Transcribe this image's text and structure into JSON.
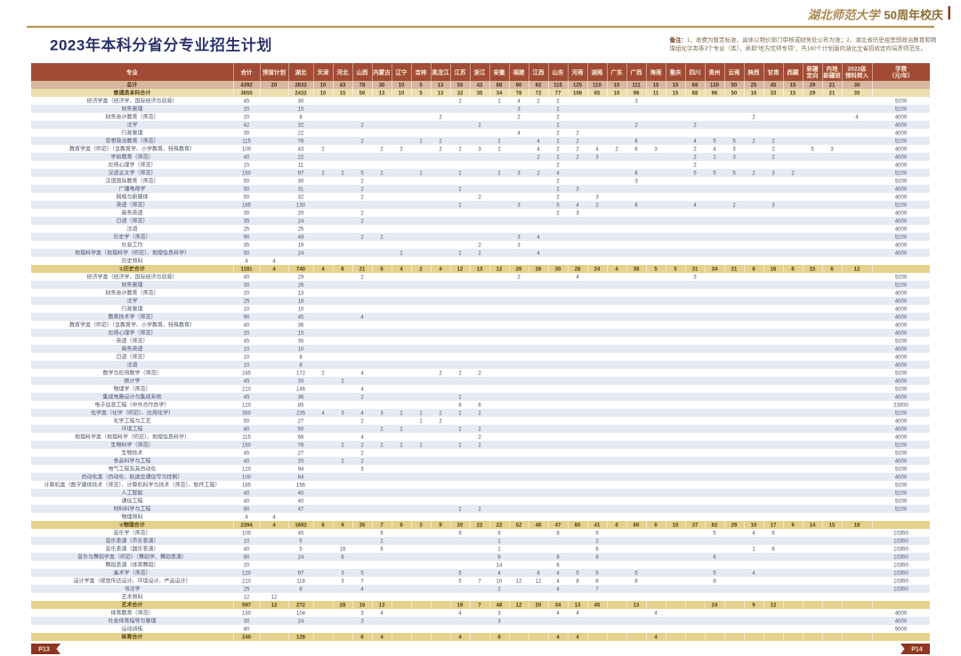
{
  "brand": {
    "school_script": "湖北师范大学",
    "anniversary": "50周年校庆"
  },
  "header": {
    "title": "2023年本科分省分专业招生计划"
  },
  "notes": {
    "label": "备注：",
    "text": "1、收费为暂定标准，具体以物价部门审核或财务处公布为准；2、湖北省历史组思想政治教育和物理组化学类等3个专业（类），承担“地方优师专项”，共140个计划面向湖北全省招收定向培养师范生。"
  },
  "footer": {
    "left_page": "P13",
    "right_page": "P14"
  },
  "colors": {
    "header_bg": "#a34c35",
    "grand_row": "#d9b6a1",
    "section_row": "#ecdfb0",
    "subtotal_row": "#e6d18c",
    "zebra": "#e7eaf6",
    "accent_gold": "#b49a5e",
    "tag_red": "#8d3722"
  },
  "table": {
    "columns": [
      "专业",
      "合计",
      "预留计划",
      "湖北",
      "天津",
      "河北",
      "山西",
      "内蒙古",
      "辽宁",
      "吉林",
      "黑龙江",
      "江苏",
      "浙江",
      "安徽",
      "福建",
      "江西",
      "山东",
      "河南",
      "湖南",
      "广东",
      "广西",
      "海南",
      "重庆",
      "四川",
      "贵州",
      "云南",
      "陕西",
      "甘肃",
      "西藏",
      "新疆\n定向",
      "内地\n新疆班",
      "2022级\n预科转入",
      "学费\n（元/年）"
    ],
    "rows": [
      {
        "name": "总计",
        "style": "grand",
        "v": {
          "0": "4392",
          "1": "20",
          "2": "2832",
          "3": "10",
          "4": "43",
          "5": "78",
          "6": "30",
          "7": "10",
          "8": "5",
          "9": "13",
          "10": "55",
          "11": "42",
          "12": "88",
          "13": "90",
          "14": "92",
          "15": "115",
          "16": "125",
          "17": "110",
          "18": "10",
          "19": "111",
          "20": "15",
          "21": "15",
          "22": "68",
          "23": "120",
          "24": "50",
          "25": "25",
          "26": "45",
          "27": "15",
          "28": "29",
          "29": "21",
          "30": "30"
        }
      },
      {
        "name": "普通类本科合计",
        "style": "section",
        "v": {
          "0": "3655",
          "2": "2432",
          "3": "10",
          "4": "15",
          "5": "56",
          "6": "13",
          "7": "10",
          "8": "5",
          "9": "13",
          "10": "32",
          "11": "35",
          "12": "34",
          "13": "78",
          "14": "72",
          "15": "77",
          "16": "108",
          "17": "65",
          "18": "10",
          "19": "98",
          "20": "11",
          "21": "15",
          "22": "68",
          "23": "96",
          "24": "50",
          "25": "16",
          "26": "33",
          "27": "15",
          "28": "29",
          "29": "21",
          "30": "30"
        }
      },
      {
        "name": "经济学类（经济学、国际经济与贸易）",
        "style": "",
        "v": {
          "0": "45",
          "2": "30",
          "10": "2",
          "12": "2",
          "13": "4",
          "14": "2",
          "15": "2",
          "19": "3",
          "31": "5200"
        }
      },
      {
        "name": "财务管理",
        "style": "",
        "v": {
          "0": "20",
          "2": "15",
          "13": "3",
          "15": "2",
          "31": "5200"
        }
      },
      {
        "name": "财务会计教育（师范）",
        "style": "",
        "v": {
          "0": "20",
          "2": "8",
          "9": "2",
          "13": "2",
          "15": "2",
          "25": "2",
          "30": "4",
          "31": "4000"
        }
      },
      {
        "name": "法学",
        "style": "",
        "v": {
          "0": "42",
          "2": "32",
          "5": "2",
          "11": "2",
          "15": "2",
          "19": "2",
          "22": "2",
          "31": "4000"
        }
      },
      {
        "name": "行政管理",
        "style": "",
        "v": {
          "0": "30",
          "2": "22",
          "13": "4",
          "15": "2",
          "16": "2",
          "31": "4000"
        }
      },
      {
        "name": "思想政治教育（师范）",
        "style": "",
        "v": {
          "0": "115",
          "2": "76",
          "5": "2",
          "8": "1",
          "9": "2",
          "12": "2",
          "14": "4",
          "15": "2",
          "16": "2",
          "19": "6",
          "22": "4",
          "23": "5",
          "24": "5",
          "25": "2",
          "26": "2",
          "31": "5200"
        }
      },
      {
        "name": "教育学类（师范）（含教育学、小学教育、特殊教育）",
        "style": "",
        "v": {
          "0": "100",
          "2": "43",
          "3": "2",
          "6": "2",
          "7": "2",
          "9": "2",
          "10": "2",
          "11": "3",
          "12": "2",
          "14": "4",
          "15": "2",
          "16": "2",
          "17": "4",
          "18": "2",
          "19": "6",
          "20": "3",
          "22": "2",
          "23": "4",
          "24": "3",
          "26": "2",
          "28": "5",
          "29": "3",
          "31": "4000"
        }
      },
      {
        "name": "学前教育（师范）",
        "style": "",
        "v": {
          "0": "40",
          "2": "22",
          "14": "2",
          "15": "2",
          "16": "2",
          "17": "3",
          "22": "2",
          "23": "2",
          "24": "3",
          "26": "2",
          "31": "4000"
        }
      },
      {
        "name": "应用心理学（师范）",
        "style": "",
        "v": {
          "0": "15",
          "2": "11",
          "15": "2",
          "22": "2",
          "31": "4000"
        }
      },
      {
        "name": "汉语言文学（师范）",
        "style": "",
        "v": {
          "0": "150",
          "2": "97",
          "3": "2",
          "4": "2",
          "5": "5",
          "6": "2",
          "8": "1",
          "10": "2",
          "12": "2",
          "13": "3",
          "14": "2",
          "15": "4",
          "19": "6",
          "22": "5",
          "23": "5",
          "24": "5",
          "25": "2",
          "26": "3",
          "27": "2",
          "31": "5200"
        }
      },
      {
        "name": "汉语国际教育（师范）",
        "style": "",
        "v": {
          "0": "50",
          "2": "30",
          "5": "2",
          "15": "2",
          "19": "3",
          "31": "5200"
        }
      },
      {
        "name": "广播电视学",
        "style": "",
        "v": {
          "0": "50",
          "2": "31",
          "5": "2",
          "10": "2",
          "15": "2",
          "16": "3",
          "31": "4000"
        }
      },
      {
        "name": "网络与新媒体",
        "style": "",
        "v": {
          "0": "50",
          "2": "32",
          "5": "2",
          "11": "2",
          "15": "2",
          "17": "3",
          "31": "4000"
        }
      },
      {
        "name": "英语（师范）",
        "style": "",
        "v": {
          "0": "185",
          "2": "130",
          "10": "2",
          "13": "3",
          "15": "5",
          "16": "4",
          "17": "2",
          "19": "6",
          "22": "4",
          "24": "2",
          "26": "3",
          "31": "5200"
        }
      },
      {
        "name": "商务英语",
        "style": "",
        "v": {
          "0": "30",
          "2": "20",
          "5": "2",
          "15": "2",
          "16": "3",
          "31": "4000"
        }
      },
      {
        "name": "日语（师范）",
        "style": "",
        "v": {
          "0": "35",
          "2": "24",
          "5": "2",
          "31": "4000"
        }
      },
      {
        "name": "法语",
        "style": "",
        "v": {
          "0": "25",
          "2": "25",
          "31": "4000"
        }
      },
      {
        "name": "历史学（师范）",
        "style": "",
        "v": {
          "0": "90",
          "2": "49",
          "5": "2",
          "6": "2",
          "13": "3",
          "14": "4",
          "31": "5200"
        }
      },
      {
        "name": "社会工作",
        "style": "",
        "v": {
          "0": "35",
          "2": "19",
          "11": "2",
          "13": "3",
          "31": "4000"
        }
      },
      {
        "name": "地理科学类（地理科学（师范）、地理信息科学）",
        "style": "",
        "v": {
          "0": "50",
          "2": "24",
          "7": "2",
          "10": "2",
          "11": "2",
          "14": "4",
          "31": "4000"
        }
      },
      {
        "name": "历史预科",
        "style": "",
        "v": {
          "0": "4",
          "1": "4"
        }
      },
      {
        "name": "①历史合计",
        "style": "subtotal",
        "v": {
          "0": "1181",
          "1": "4",
          "2": "740",
          "3": "4",
          "4": "6",
          "5": "21",
          "6": "6",
          "7": "4",
          "8": "2",
          "9": "4",
          "10": "12",
          "11": "13",
          "12": "12",
          "13": "26",
          "14": "26",
          "15": "30",
          "16": "28",
          "17": "24",
          "18": "4",
          "19": "38",
          "20": "5",
          "21": "5",
          "22": "31",
          "23": "34",
          "24": "21",
          "25": "6",
          "26": "16",
          "27": "6",
          "28": "15",
          "29": "6",
          "30": "12"
        }
      },
      {
        "name": "经济学类（经济学、国际经济与贸易）",
        "style": "",
        "v": {
          "0": "40",
          "2": "29",
          "5": "2",
          "13": "2",
          "16": "4",
          "22": "3",
          "31": "5200"
        }
      },
      {
        "name": "财务管理",
        "style": "",
        "v": {
          "0": "30",
          "2": "26",
          "31": "5200"
        }
      },
      {
        "name": "财务会计教育（师范）",
        "style": "",
        "v": {
          "0": "20",
          "2": "13",
          "31": "4000"
        }
      },
      {
        "name": "法学",
        "style": "",
        "v": {
          "0": "25",
          "2": "18",
          "31": "4000"
        }
      },
      {
        "name": "行政管理",
        "style": "",
        "v": {
          "0": "10",
          "2": "10",
          "31": "4000"
        }
      },
      {
        "name": "教育技术学（师范）",
        "style": "",
        "v": {
          "0": "90",
          "2": "45",
          "5": "4",
          "31": "4000"
        }
      },
      {
        "name": "教育学类（师范）（含教育学、小学教育、特殊教育）",
        "style": "",
        "v": {
          "0": "40",
          "2": "36",
          "31": "4000"
        }
      },
      {
        "name": "应用心理学（师范）",
        "style": "",
        "v": {
          "0": "20",
          "2": "15",
          "31": "4000"
        }
      },
      {
        "name": "英语（师范）",
        "style": "",
        "v": {
          "0": "45",
          "2": "35",
          "31": "5200"
        }
      },
      {
        "name": "商务英语",
        "style": "",
        "v": {
          "0": "10",
          "2": "10",
          "31": "4000"
        }
      },
      {
        "name": "日语（师范）",
        "style": "",
        "v": {
          "0": "10",
          "2": "8",
          "31": "4000"
        }
      },
      {
        "name": "法语",
        "style": "",
        "v": {
          "0": "10",
          "2": "8",
          "31": "4000"
        }
      },
      {
        "name": "数学与应用数学（师范）",
        "style": "",
        "v": {
          "0": "245",
          "2": "172",
          "3": "2",
          "5": "4",
          "9": "2",
          "10": "2",
          "11": "2",
          "31": "5200"
        }
      },
      {
        "name": "统计学",
        "style": "",
        "v": {
          "0": "45",
          "2": "33",
          "4": "2",
          "31": "4000"
        }
      },
      {
        "name": "物理学（师范）",
        "style": "",
        "v": {
          "0": "210",
          "2": "146",
          "5": "4",
          "31": "5200"
        }
      },
      {
        "name": "集成电路设计与集成系统",
        "style": "",
        "v": {
          "0": "45",
          "2": "36",
          "5": "2",
          "10": "2",
          "31": "4000"
        }
      },
      {
        "name": "电子信息工程（中外合作办学）",
        "style": "",
        "v": {
          "0": "120",
          "2": "85",
          "10": "8",
          "11": "6",
          "31": "23000"
        }
      },
      {
        "name": "化学类（化学（师范）、应用化学）",
        "style": "",
        "v": {
          "0": "350",
          "2": "235",
          "3": "4",
          "4": "3",
          "5": "4",
          "6": "3",
          "7": "2",
          "8": "1",
          "9": "2",
          "10": "2",
          "11": "2",
          "31": "5200"
        }
      },
      {
        "name": "化学工程与工艺",
        "style": "",
        "v": {
          "0": "50",
          "2": "27",
          "5": "2",
          "8": "1",
          "9": "2",
          "31": "4000"
        }
      },
      {
        "name": "环境工程",
        "style": "",
        "v": {
          "0": "80",
          "2": "50",
          "6": "2",
          "7": "2",
          "10": "2",
          "11": "2",
          "31": "4000"
        }
      },
      {
        "name": "地理科学类（地理科学（师范）、地理信息科学）",
        "style": "",
        "v": {
          "0": "115",
          "2": "66",
          "5": "4",
          "11": "2",
          "31": "4000"
        }
      },
      {
        "name": "生物科学（师范）",
        "style": "",
        "v": {
          "0": "150",
          "2": "78",
          "4": "2",
          "5": "2",
          "6": "2",
          "7": "2",
          "8": "1",
          "10": "2",
          "11": "2",
          "31": "5200"
        }
      },
      {
        "name": "生物技术",
        "style": "",
        "v": {
          "0": "45",
          "2": "27",
          "5": "2",
          "31": "5200"
        }
      },
      {
        "name": "食品科学与工程",
        "style": "",
        "v": {
          "0": "40",
          "2": "20",
          "4": "2",
          "5": "2",
          "31": "4000"
        }
      },
      {
        "name": "电气工程及其自动化",
        "style": "",
        "v": {
          "0": "120",
          "2": "94",
          "5": "3",
          "31": "5200"
        }
      },
      {
        "name": "自动化类（自动化、轨道交通信号与控制）",
        "style": "",
        "v": {
          "0": "100",
          "2": "64",
          "31": "4000"
        }
      },
      {
        "name": "计算机类（数字媒体技术（师范）、计算机科学与技术（师范）、软件工程）",
        "style": "",
        "v": {
          "0": "185",
          "2": "156",
          "31": "5200"
        }
      },
      {
        "name": "人工智能",
        "style": "",
        "v": {
          "0": "40",
          "2": "40",
          "31": "5200"
        }
      },
      {
        "name": "通信工程",
        "style": "",
        "v": {
          "0": "40",
          "2": "40",
          "31": "5200"
        }
      },
      {
        "name": "材料科学与工程",
        "style": "",
        "v": {
          "0": "60",
          "2": "47",
          "10": "2",
          "11": "2",
          "31": "5200"
        }
      },
      {
        "name": "物理预科",
        "style": "",
        "v": {
          "0": "4",
          "1": "4"
        }
      },
      {
        "name": "②物理合计",
        "style": "subtotal",
        "v": {
          "0": "2394",
          "1": "4",
          "2": "1692",
          "3": "6",
          "4": "9",
          "5": "35",
          "6": "7",
          "7": "6",
          "8": "3",
          "9": "9",
          "10": "20",
          "11": "22",
          "12": "22",
          "13": "52",
          "14": "46",
          "15": "47",
          "16": "80",
          "17": "41",
          "18": "6",
          "19": "60",
          "20": "6",
          "21": "10",
          "22": "37",
          "23": "62",
          "24": "29",
          "25": "10",
          "26": "17",
          "27": "9",
          "28": "14",
          "29": "15",
          "30": "18"
        }
      },
      {
        "name": "音乐学（师范）",
        "style": "",
        "v": {
          "0": "100",
          "2": "45",
          "6": "6",
          "10": "9",
          "12": "8",
          "15": "8",
          "17": "9",
          "23": "5",
          "25": "4",
          "26": "6",
          "31": "10350"
        }
      },
      {
        "name": "音乐表演（声乐表演）",
        "style": "",
        "v": {
          "0": "10",
          "2": "5",
          "6": "2",
          "12": "1",
          "17": "2",
          "31": "10350"
        }
      },
      {
        "name": "音乐表演（器乐表演）",
        "style": "",
        "v": {
          "0": "40",
          "2": "5",
          "4": "16",
          "6": "5",
          "12": "1",
          "17": "6",
          "25": "1",
          "26": "6",
          "31": "10350"
        }
      },
      {
        "name": "音乐与舞蹈学类（师范）（舞蹈学、舞蹈表演）",
        "style": "",
        "v": {
          "0": "60",
          "2": "24",
          "4": "6",
          "12": "8",
          "15": "8",
          "17": "8",
          "23": "6",
          "31": "10350"
        }
      },
      {
        "name": "舞蹈表演（体育舞蹈）",
        "style": "",
        "v": {
          "0": "20",
          "12": "14",
          "15": "6",
          "31": "10350"
        }
      },
      {
        "name": "美术学（师范）",
        "style": "",
        "v": {
          "0": "120",
          "2": "67",
          "4": "3",
          "5": "5",
          "10": "5",
          "12": "4",
          "14": "8",
          "15": "4",
          "16": "5",
          "17": "5",
          "19": "5",
          "23": "5",
          "25": "4",
          "31": "10350"
        }
      },
      {
        "name": "设计学类（视觉传达设计、环境设计、产品设计）",
        "style": "",
        "v": {
          "0": "210",
          "2": "118",
          "4": "3",
          "5": "7",
          "10": "5",
          "11": "7",
          "12": "10",
          "13": "12",
          "14": "12",
          "15": "4",
          "16": "8",
          "17": "8",
          "19": "8",
          "23": "8",
          "31": "10350"
        }
      },
      {
        "name": "书法学",
        "style": "",
        "v": {
          "0": "25",
          "2": "8",
          "5": "4",
          "12": "2",
          "15": "4",
          "17": "7",
          "31": "10350"
        }
      },
      {
        "name": "艺术预科",
        "style": "",
        "v": {
          "0": "12",
          "1": "12"
        }
      },
      {
        "name": "艺术合计",
        "style": "subtotal",
        "v": {
          "0": "597",
          "1": "12",
          "2": "272",
          "4": "28",
          "5": "16",
          "6": "13",
          "10": "19",
          "11": "7",
          "12": "48",
          "13": "12",
          "14": "20",
          "15": "34",
          "16": "13",
          "17": "45",
          "19": "13",
          "23": "24",
          "25": "9",
          "26": "12"
        }
      },
      {
        "name": "体育教育（师范）",
        "style": "",
        "v": {
          "0": "130",
          "2": "104",
          "5": "3",
          "6": "4",
          "10": "4",
          "12": "3",
          "15": "4",
          "16": "4",
          "20": "4",
          "31": "4000"
        }
      },
      {
        "name": "社会体育指导与管理",
        "style": "",
        "v": {
          "0": "30",
          "2": "24",
          "5": "3",
          "12": "3",
          "31": "4000"
        }
      },
      {
        "name": "运动训练",
        "style": "",
        "v": {
          "0": "80",
          "31": "9000"
        }
      },
      {
        "name": "体育合计",
        "style": "subtotal",
        "v": {
          "0": "240",
          "2": "128",
          "5": "6",
          "6": "4",
          "10": "4",
          "12": "6",
          "15": "4",
          "16": "4",
          "20": "4"
        }
      }
    ]
  }
}
